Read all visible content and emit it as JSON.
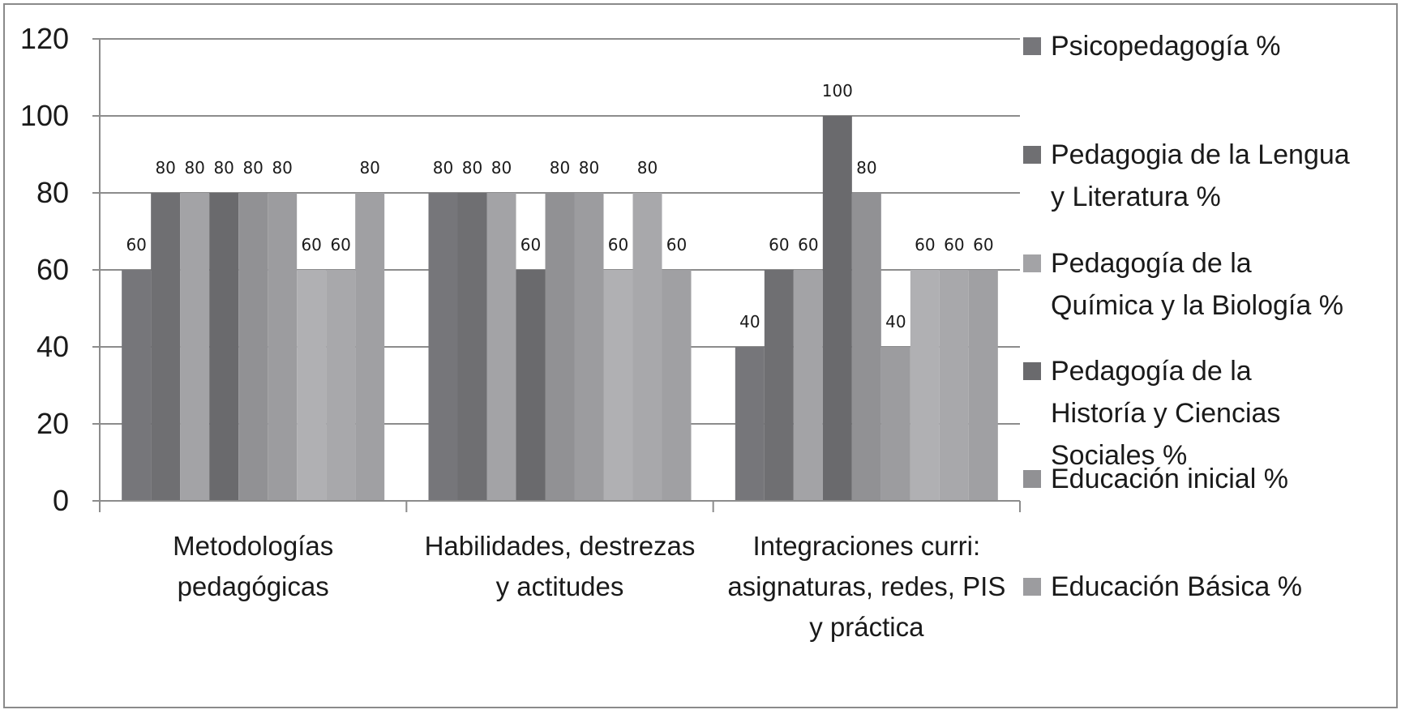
{
  "chart_data": {
    "type": "bar",
    "title": "",
    "xlabel": "",
    "ylabel": "",
    "ylim": [
      0,
      120
    ],
    "yticks": [
      0,
      20,
      40,
      60,
      80,
      100,
      120
    ],
    "grid": "horizontal",
    "legend_position": "right",
    "categories": [
      "Metodologías pedagógicas",
      "Habilidades, destrezas y actitudes",
      "Integraciones curri: asignaturas, redes, PIS y práctica"
    ],
    "category_label_lines": [
      [
        "Metodologías",
        "pedagógicas"
      ],
      [
        "Habilidades, destrezas",
        "y actitudes"
      ],
      [
        "Integraciones curri:",
        "asignaturas, redes, PIS",
        "y práctica"
      ]
    ],
    "series": [
      {
        "name": "Psicopedagogía %",
        "color": "#76767a",
        "values": [
          60,
          80,
          40
        ]
      },
      {
        "name": "Pedagogia de la Lengua y Literatura %",
        "color": "#6f6f72",
        "values": [
          80,
          80,
          60
        ]
      },
      {
        "name": "Pedagogía de la Química y la Biología %",
        "color": "#a3a3a6",
        "values": [
          80,
          80,
          60
        ]
      },
      {
        "name": "Pedagogía de la Historía y Ciencias Sociales %",
        "color": "#6a6a6d",
        "values": [
          80,
          60,
          100
        ]
      },
      {
        "name": "Educación inicial  %",
        "color": "#919194",
        "values": [
          80,
          80,
          80
        ]
      },
      {
        "name": "Educación Básica %",
        "color": "#9c9c9f",
        "values": [
          80,
          80,
          40
        ]
      },
      {
        "name": "",
        "color": "#b0b0b3",
        "values": [
          60,
          60,
          60
        ]
      },
      {
        "name": "",
        "color": "#a8a8ab",
        "values": [
          60,
          80,
          60
        ]
      },
      {
        "name": "",
        "color": "#a0a0a3",
        "values": [
          80,
          60,
          60
        ]
      }
    ],
    "legend_lines": [
      [
        "Psicopedagogía %"
      ],
      [
        "Pedagogia de la Lengua",
        "y Literatura %"
      ],
      [
        "Pedagogía de la",
        "Química y la Biología %"
      ],
      [
        "Pedagogía de la",
        "Historía y Ciencias",
        "Sociales %"
      ],
      [
        "Educación inicial  %"
      ],
      [
        "Educación Básica %"
      ]
    ]
  }
}
